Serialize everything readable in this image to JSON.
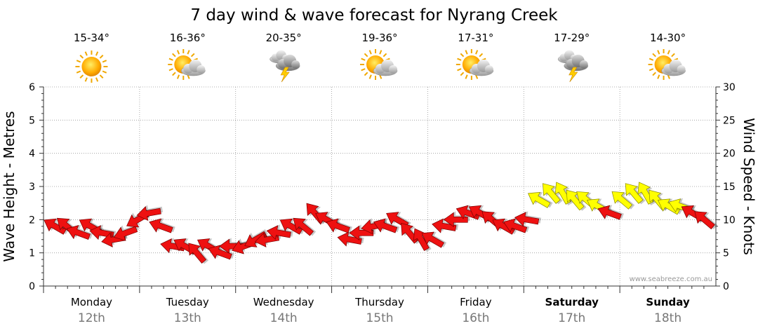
{
  "chart_data": {
    "type": "line",
    "title": "7 day wind & wave forecast for Nyrang Creek",
    "ylabel": "Wave Height - Metres",
    "y2label": "Wind Speed - Knots",
    "ylim": [
      0,
      6
    ],
    "y2lim": [
      0,
      30
    ],
    "yticks": [
      "0",
      "1",
      "2",
      "3",
      "4",
      "5",
      "6"
    ],
    "y2ticks": [
      "0",
      "5",
      "10",
      "15",
      "20",
      "25",
      "30"
    ],
    "days": [
      {
        "name": "Monday",
        "date": "12th",
        "temp": "15-34°",
        "icon": "sunny",
        "bold": false
      },
      {
        "name": "Tuesday",
        "date": "13th",
        "temp": "16-36°",
        "icon": "partly-cloudy",
        "bold": false
      },
      {
        "name": "Wednesday",
        "date": "14th",
        "temp": "20-35°",
        "icon": "thunderstorm",
        "bold": false
      },
      {
        "name": "Thursday",
        "date": "15th",
        "temp": "19-36°",
        "icon": "partly-cloudy",
        "bold": false
      },
      {
        "name": "Friday",
        "date": "16th",
        "temp": "17-31°",
        "icon": "partly-cloudy",
        "bold": false
      },
      {
        "name": "Saturday",
        "date": "17th",
        "temp": "17-29°",
        "icon": "thunderstorm",
        "bold": true
      },
      {
        "name": "Sunday",
        "date": "18th",
        "temp": "14-30°",
        "icon": "partly-cloudy",
        "bold": true
      }
    ],
    "wind_speed_knots": [
      9,
      9,
      8,
      9,
      8,
      7,
      8,
      10,
      11,
      9,
      6,
      6,
      5,
      6,
      5,
      6,
      6,
      7,
      7,
      8,
      9,
      9,
      11,
      10,
      9,
      7,
      8,
      9,
      9,
      10,
      8,
      7,
      7,
      9,
      10,
      11,
      11,
      10,
      9,
      9,
      10,
      13,
      14,
      14,
      13,
      13,
      12,
      11,
      13,
      14,
      14,
      13,
      12,
      12,
      11,
      10
    ],
    "wind_direction_deg": [
      300,
      310,
      290,
      300,
      280,
      260,
      250,
      240,
      260,
      290,
      280,
      300,
      320,
      300,
      290,
      270,
      250,
      240,
      260,
      280,
      300,
      310,
      320,
      300,
      290,
      280,
      270,
      260,
      290,
      300,
      320,
      330,
      300,
      280,
      270,
      290,
      300,
      310,
      300,
      290,
      280,
      300,
      320,
      330,
      320,
      310,
      300,
      290,
      310,
      320,
      330,
      320,
      300,
      290,
      300,
      310
    ],
    "strong_wind_threshold_knots": 12,
    "colors": {
      "calm": "#ee1111",
      "strong": "#ffff00",
      "grid": "#999999"
    },
    "credit": "www.seabreeze.com.au"
  }
}
